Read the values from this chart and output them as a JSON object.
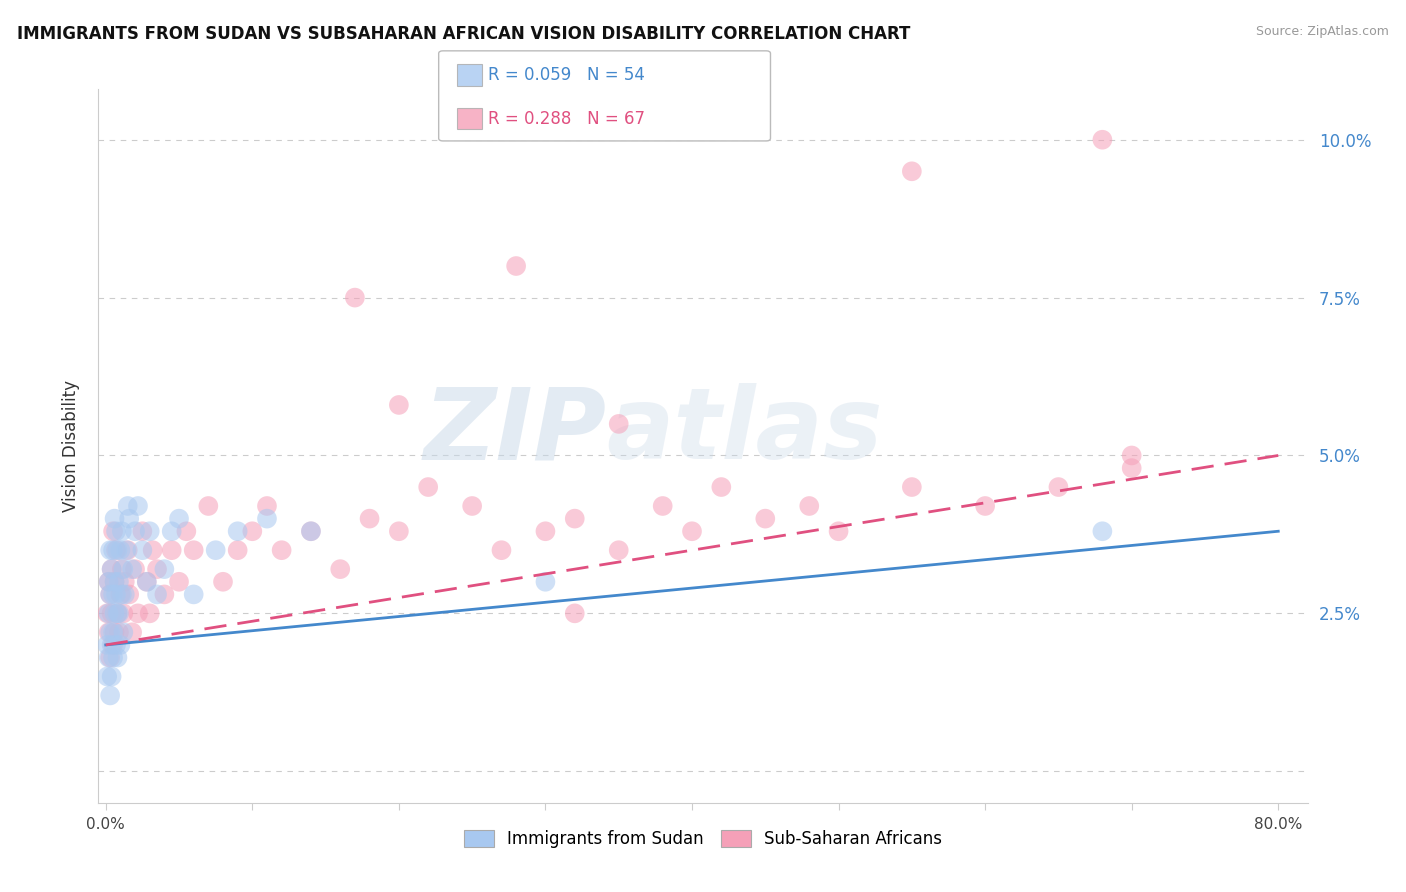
{
  "title": "IMMIGRANTS FROM SUDAN VS SUBSAHARAN AFRICAN VISION DISABILITY CORRELATION CHART",
  "source": "Source: ZipAtlas.com",
  "ylabel": "Vision Disability",
  "xlim": [
    0,
    0.8
  ],
  "ylim": [
    -0.005,
    0.108
  ],
  "xticks": [
    0.0,
    0.1,
    0.2,
    0.3,
    0.4,
    0.5,
    0.6,
    0.7,
    0.8
  ],
  "yticks": [
    0.0,
    0.025,
    0.05,
    0.075,
    0.1
  ],
  "yticklabels": [
    "",
    "2.5%",
    "5.0%",
    "7.5%",
    "10.0%"
  ],
  "blue_R": 0.059,
  "blue_N": 54,
  "pink_R": 0.288,
  "pink_N": 67,
  "blue_color": "#A8C8F0",
  "pink_color": "#F5A0B8",
  "blue_line_color": "#4488CC",
  "pink_line_color": "#E05080",
  "legend_label_blue": "Immigrants from Sudan",
  "legend_label_pink": "Sub-Saharan Africans",
  "watermark": "ZIPatlas",
  "background_color": "#ffffff",
  "grid_color": "#cccccc",
  "blue_x": [
    0.001,
    0.001,
    0.002,
    0.002,
    0.002,
    0.003,
    0.003,
    0.003,
    0.003,
    0.004,
    0.004,
    0.004,
    0.005,
    0.005,
    0.005,
    0.005,
    0.006,
    0.006,
    0.006,
    0.007,
    0.007,
    0.007,
    0.008,
    0.008,
    0.008,
    0.009,
    0.009,
    0.01,
    0.01,
    0.011,
    0.011,
    0.012,
    0.012,
    0.013,
    0.014,
    0.015,
    0.016,
    0.018,
    0.02,
    0.022,
    0.025,
    0.028,
    0.03,
    0.035,
    0.04,
    0.045,
    0.05,
    0.06,
    0.075,
    0.09,
    0.11,
    0.14,
    0.3,
    0.68
  ],
  "blue_y": [
    0.02,
    0.015,
    0.025,
    0.018,
    0.03,
    0.022,
    0.028,
    0.012,
    0.035,
    0.02,
    0.032,
    0.015,
    0.028,
    0.022,
    0.035,
    0.018,
    0.03,
    0.025,
    0.04,
    0.02,
    0.038,
    0.028,
    0.025,
    0.035,
    0.018,
    0.03,
    0.025,
    0.035,
    0.02,
    0.028,
    0.038,
    0.022,
    0.032,
    0.028,
    0.035,
    0.042,
    0.04,
    0.032,
    0.038,
    0.042,
    0.035,
    0.03,
    0.038,
    0.028,
    0.032,
    0.038,
    0.04,
    0.028,
    0.035,
    0.038,
    0.04,
    0.038,
    0.03,
    0.038
  ],
  "pink_x": [
    0.001,
    0.002,
    0.002,
    0.003,
    0.003,
    0.004,
    0.004,
    0.005,
    0.005,
    0.006,
    0.006,
    0.007,
    0.008,
    0.009,
    0.01,
    0.011,
    0.012,
    0.013,
    0.015,
    0.016,
    0.018,
    0.02,
    0.022,
    0.025,
    0.028,
    0.03,
    0.032,
    0.035,
    0.04,
    0.045,
    0.05,
    0.055,
    0.06,
    0.07,
    0.08,
    0.09,
    0.1,
    0.11,
    0.12,
    0.14,
    0.16,
    0.18,
    0.2,
    0.22,
    0.25,
    0.27,
    0.3,
    0.32,
    0.35,
    0.38,
    0.4,
    0.42,
    0.45,
    0.48,
    0.5,
    0.55,
    0.6,
    0.65,
    0.7,
    0.28,
    0.35,
    0.17,
    0.2,
    0.32,
    0.55,
    0.7,
    0.68
  ],
  "pink_y": [
    0.025,
    0.022,
    0.03,
    0.018,
    0.028,
    0.025,
    0.032,
    0.02,
    0.038,
    0.022,
    0.03,
    0.035,
    0.025,
    0.022,
    0.028,
    0.032,
    0.025,
    0.03,
    0.035,
    0.028,
    0.022,
    0.032,
    0.025,
    0.038,
    0.03,
    0.025,
    0.035,
    0.032,
    0.028,
    0.035,
    0.03,
    0.038,
    0.035,
    0.042,
    0.03,
    0.035,
    0.038,
    0.042,
    0.035,
    0.038,
    0.032,
    0.04,
    0.038,
    0.045,
    0.042,
    0.035,
    0.038,
    0.04,
    0.035,
    0.042,
    0.038,
    0.045,
    0.04,
    0.042,
    0.038,
    0.045,
    0.042,
    0.045,
    0.048,
    0.08,
    0.055,
    0.075,
    0.058,
    0.025,
    0.095,
    0.05,
    0.1
  ],
  "blue_trend_x0": 0.0,
  "blue_trend_x1": 0.8,
  "blue_trend_y0": 0.02,
  "blue_trend_y1": 0.038,
  "pink_trend_x0": 0.0,
  "pink_trend_x1": 0.8,
  "pink_trend_y0": 0.02,
  "pink_trend_y1": 0.05
}
